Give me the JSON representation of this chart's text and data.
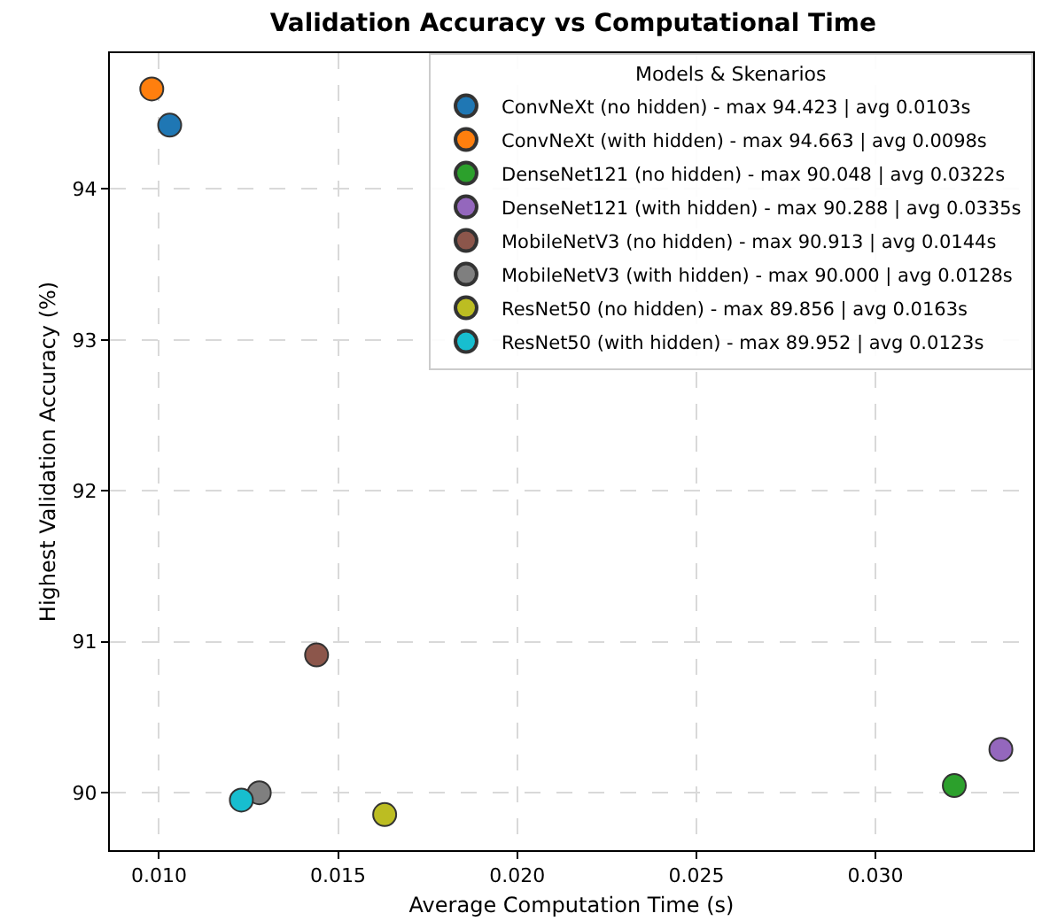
{
  "chart_data": {
    "type": "scatter",
    "title": "Validation Accuracy vs Computational Time",
    "xlabel": "Average Computation Time (s)",
    "ylabel": "Highest Validation Accuracy (%)",
    "legend_title": "Models & Skenarios",
    "series": [
      {
        "name": "ConvNeXt (no hidden) - max 94.423 | avg 0.0103s",
        "color": "#1f77b4",
        "x": [
          0.0103
        ],
        "values": [
          94.423
        ]
      },
      {
        "name": "ConvNeXt (with hidden) - max 94.663 | avg 0.0098s",
        "color": "#ff7f0e",
        "x": [
          0.0098
        ],
        "values": [
          94.663
        ]
      },
      {
        "name": "DenseNet121 (no hidden) - max 90.048 | avg 0.0322s",
        "color": "#2ca02c",
        "x": [
          0.0322
        ],
        "values": [
          90.048
        ]
      },
      {
        "name": "DenseNet121 (with hidden) - max 90.288 | avg 0.0335s",
        "color": "#9467bd",
        "x": [
          0.0335
        ],
        "values": [
          90.288
        ]
      },
      {
        "name": "MobileNetV3 (no hidden) - max 90.913 | avg 0.0144s",
        "color": "#8c564b",
        "x": [
          0.0144
        ],
        "values": [
          90.913
        ]
      },
      {
        "name": "MobileNetV3 (with hidden) - max 90.000 | avg 0.0128s",
        "color": "#7f7f7f",
        "x": [
          0.0128
        ],
        "values": [
          90.0
        ]
      },
      {
        "name": "ResNet50 (no hidden) - max 89.856 | avg 0.0163s",
        "color": "#bcbd22",
        "x": [
          0.0163
        ],
        "values": [
          89.856
        ]
      },
      {
        "name": "ResNet50 (with hidden) - max 89.952 | avg 0.0123s",
        "color": "#17becf",
        "x": [
          0.0123
        ],
        "values": [
          89.952
        ]
      }
    ],
    "xlim": [
      0.00863,
      0.0344
    ],
    "xticks": [
      {
        "value": 0.01,
        "label": "0.010"
      },
      {
        "value": 0.015,
        "label": "0.015"
      },
      {
        "value": 0.02,
        "label": "0.020"
      },
      {
        "value": 0.025,
        "label": "0.025"
      },
      {
        "value": 0.03,
        "label": "0.030"
      }
    ],
    "ylim": [
      89.62,
      94.9
    ],
    "yticks": [
      90,
      91,
      92,
      93,
      94
    ],
    "grid": true,
    "legend": "top right",
    "marker": "circle"
  }
}
